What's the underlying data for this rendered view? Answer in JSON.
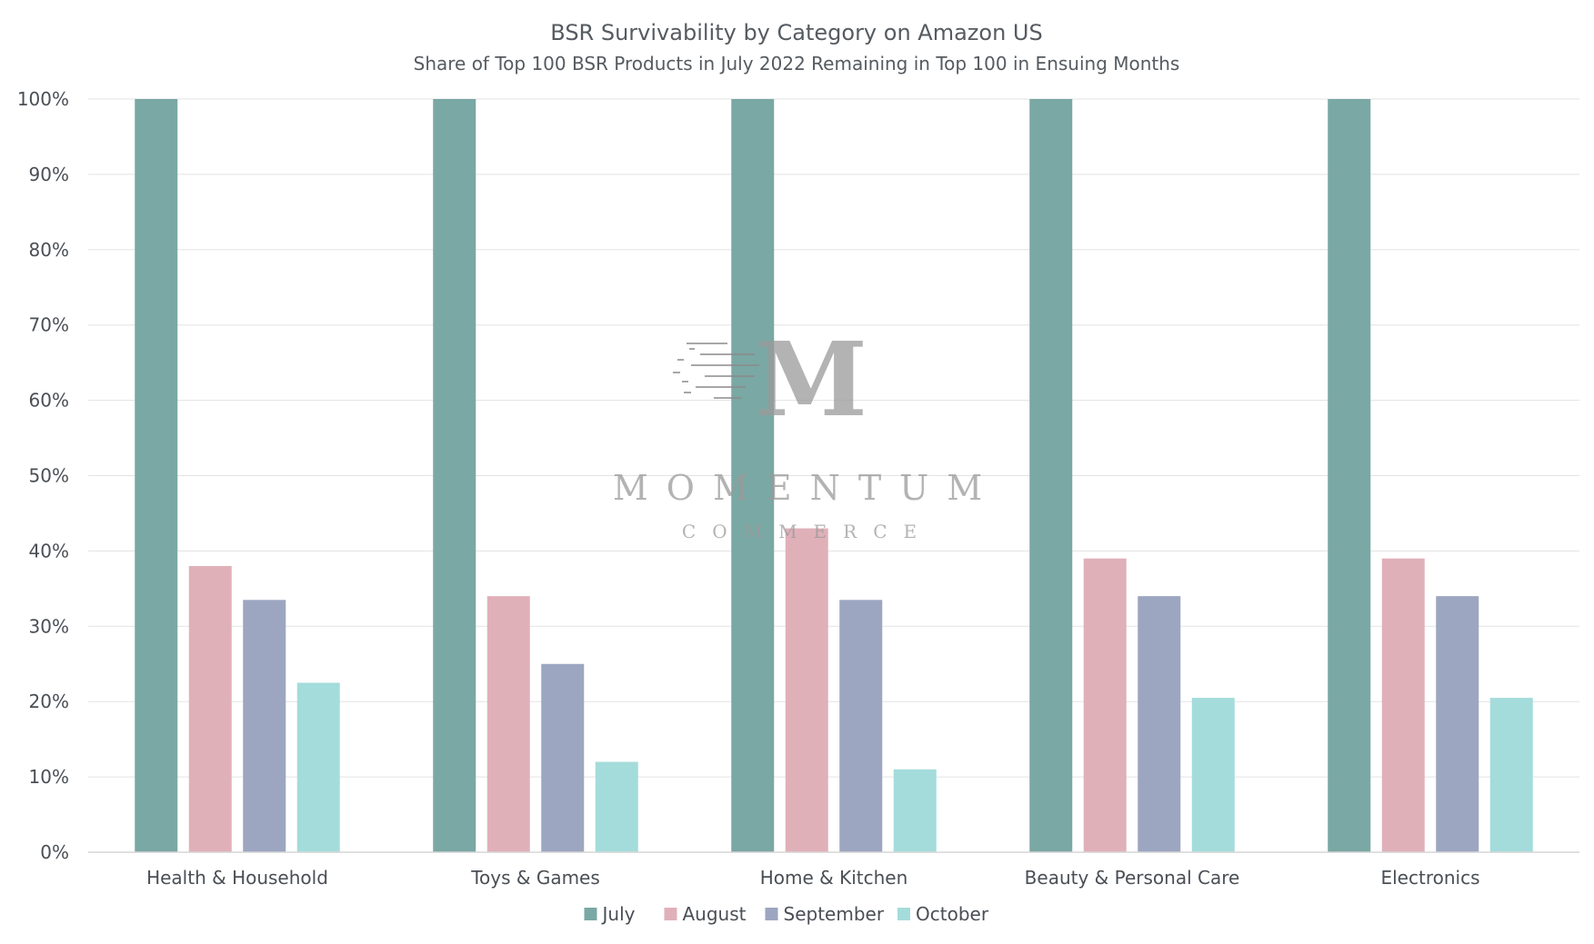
{
  "chart_data": {
    "type": "bar",
    "title": "BSR Survivability by Category on Amazon US",
    "subtitle": "Share of Top 100 BSR Products in July 2022 Remaining in Top 100 in Ensuing Months",
    "categories": [
      "Health & Household",
      "Toys & Games",
      "Home & Kitchen",
      "Beauty & Personal Care",
      "Electronics"
    ],
    "series": [
      {
        "name": "July",
        "color": "#7aa8a4",
        "values": [
          100,
          100,
          100,
          100,
          100
        ]
      },
      {
        "name": "August",
        "color": "#e0b0b9",
        "values": [
          38,
          34,
          43,
          39,
          39
        ]
      },
      {
        "name": "September",
        "color": "#9ca6c0",
        "values": [
          33.5,
          25,
          33.5,
          34,
          34
        ]
      },
      {
        "name": "October",
        "color": "#a4dcdb",
        "values": [
          22.5,
          12,
          11,
          20.5,
          20.5
        ]
      }
    ],
    "yticks": [
      "0%",
      "10%",
      "20%",
      "30%",
      "40%",
      "50%",
      "60%",
      "70%",
      "80%",
      "90%",
      "100%"
    ],
    "ylim": [
      0,
      100
    ],
    "grid": true,
    "legend_position": "bottom-center",
    "watermark": {
      "name": "MOMENTUM",
      "sub": "COMMERCE",
      "monogram": "M"
    }
  }
}
